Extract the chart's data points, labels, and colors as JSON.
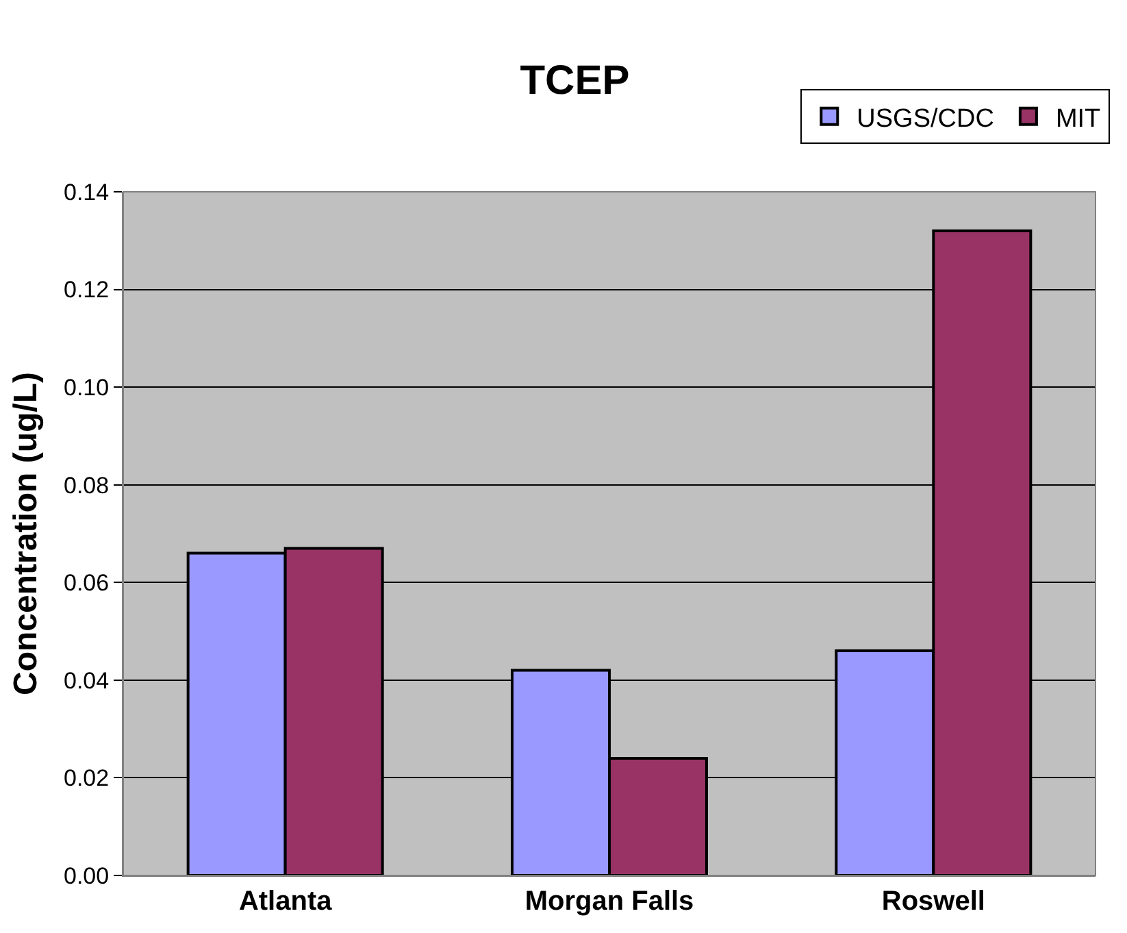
{
  "chart_data": {
    "type": "bar",
    "title": "TCEP",
    "ylabel": "Concentration (ug/L)",
    "categories": [
      "Atlanta",
      "Morgan Falls",
      "Roswell"
    ],
    "series": [
      {
        "name": "USGS/CDC",
        "color": "#9999ff",
        "values": [
          0.066,
          0.042,
          0.046
        ]
      },
      {
        "name": "MIT",
        "color": "#993366",
        "values": [
          0.067,
          0.024,
          0.132
        ]
      }
    ],
    "ylim": [
      0,
      0.14
    ],
    "yticks": [
      {
        "value": 0,
        "label": "0.00"
      },
      {
        "value": 0.02,
        "label": "0.02"
      },
      {
        "value": 0.04,
        "label": "0.04"
      },
      {
        "value": 0.06,
        "label": "0.06"
      },
      {
        "value": 0.08,
        "label": "0.08"
      },
      {
        "value": 0.1,
        "label": "0.10"
      },
      {
        "value": 0.12,
        "label": "0.12"
      },
      {
        "value": 0.14,
        "label": "0.14"
      }
    ],
    "grid": "y",
    "legend": "top right"
  }
}
